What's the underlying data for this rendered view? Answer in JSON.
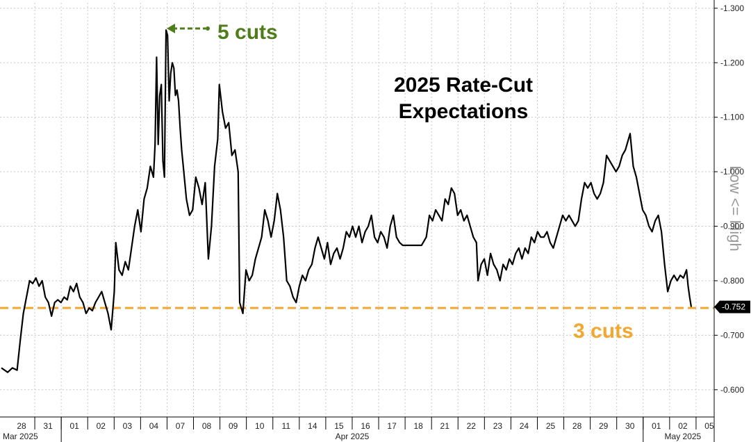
{
  "chart_data": {
    "type": "line",
    "title_lines": [
      "2025 Rate-Cut",
      "Expectations"
    ],
    "y_axis_side_label": "Low <= High",
    "ylim": [
      -0.55,
      -1.31
    ],
    "y_ticks": [
      "-0.600",
      "-0.700",
      "-0.800",
      "-0.900",
      "-1.000",
      "-1.100",
      "-1.200",
      "-1.300"
    ],
    "y_tick_values": [
      -0.6,
      -0.7,
      -0.8,
      -0.9,
      -1.0,
      -1.1,
      -1.2,
      -1.3
    ],
    "x_ticks": [
      "28",
      "31",
      "01",
      "02",
      "03",
      "04",
      "07",
      "08",
      "09",
      "10",
      "11",
      "14",
      "15",
      "16",
      "17",
      "18",
      "21",
      "22",
      "23",
      "24",
      "25",
      "28",
      "29",
      "30",
      "01",
      "02",
      "05"
    ],
    "month_labels": [
      "Mar 2025",
      "Apr 2025",
      "May 2025"
    ],
    "current_value_label": "-0.752",
    "current_value": -0.752,
    "reference_line": {
      "value": -0.75,
      "label": "3 cuts",
      "color": "#f0a830"
    },
    "peak_annotation": {
      "value": -1.27,
      "label": "5 cuts",
      "color": "#4e7d1a"
    },
    "series": [
      {
        "color": "#000000",
        "points": [
          [
            0,
            -0.64
          ],
          [
            0.4,
            -0.632
          ],
          [
            0.7,
            -0.64
          ],
          [
            1.0,
            -0.636
          ],
          [
            1.2,
            -0.69
          ],
          [
            1.4,
            -0.74
          ],
          [
            1.6,
            -0.77
          ],
          [
            1.8,
            -0.8
          ],
          [
            2.0,
            -0.795
          ],
          [
            2.2,
            -0.805
          ],
          [
            2.4,
            -0.79
          ],
          [
            2.6,
            -0.8
          ],
          [
            2.8,
            -0.77
          ],
          [
            3.0,
            -0.76
          ],
          [
            3.2,
            -0.735
          ],
          [
            3.4,
            -0.76
          ],
          [
            3.6,
            -0.765
          ],
          [
            3.8,
            -0.76
          ],
          [
            4.0,
            -0.77
          ],
          [
            4.2,
            -0.765
          ],
          [
            4.4,
            -0.79
          ],
          [
            4.6,
            -0.78
          ],
          [
            4.8,
            -0.795
          ],
          [
            5.0,
            -0.77
          ],
          [
            5.2,
            -0.76
          ],
          [
            5.4,
            -0.74
          ],
          [
            5.6,
            -0.75
          ],
          [
            5.8,
            -0.745
          ],
          [
            6.0,
            -0.76
          ],
          [
            6.2,
            -0.77
          ],
          [
            6.4,
            -0.78
          ],
          [
            6.6,
            -0.76
          ],
          [
            6.8,
            -0.74
          ],
          [
            7.0,
            -0.71
          ],
          [
            7.2,
            -0.78
          ],
          [
            7.3,
            -0.87
          ],
          [
            7.5,
            -0.82
          ],
          [
            7.7,
            -0.81
          ],
          [
            7.9,
            -0.835
          ],
          [
            8.1,
            -0.82
          ],
          [
            8.3,
            -0.86
          ],
          [
            8.5,
            -0.9
          ],
          [
            8.7,
            -0.93
          ],
          [
            8.9,
            -0.89
          ],
          [
            9.1,
            -0.95
          ],
          [
            9.3,
            -0.97
          ],
          [
            9.5,
            -1.01
          ],
          [
            9.7,
            -0.99
          ],
          [
            9.8,
            -1.05
          ],
          [
            9.9,
            -1.21
          ],
          [
            10.0,
            -1.05
          ],
          [
            10.1,
            -1.14
          ],
          [
            10.2,
            -1.16
          ],
          [
            10.3,
            -1.02
          ],
          [
            10.4,
            -0.99
          ],
          [
            10.5,
            -1.26
          ],
          [
            10.6,
            -1.25
          ],
          [
            10.7,
            -1.13
          ],
          [
            10.8,
            -1.18
          ],
          [
            10.9,
            -1.2
          ],
          [
            11.0,
            -1.19
          ],
          [
            11.1,
            -1.14
          ],
          [
            11.2,
            -1.15
          ],
          [
            11.3,
            -1.13
          ],
          [
            11.4,
            -1.08
          ],
          [
            11.5,
            -1.04
          ],
          [
            11.6,
            -1.01
          ],
          [
            11.8,
            -0.95
          ],
          [
            12.0,
            -0.92
          ],
          [
            12.2,
            -0.93
          ],
          [
            12.4,
            -0.99
          ],
          [
            12.6,
            -0.97
          ],
          [
            12.8,
            -0.94
          ],
          [
            13.0,
            -0.98
          ],
          [
            13.2,
            -0.84
          ],
          [
            13.4,
            -0.9
          ],
          [
            13.6,
            -1.01
          ],
          [
            13.8,
            -1.06
          ],
          [
            13.9,
            -1.16
          ],
          [
            14.1,
            -1.11
          ],
          [
            14.3,
            -1.08
          ],
          [
            14.5,
            -1.09
          ],
          [
            14.7,
            -1.03
          ],
          [
            14.9,
            -1.04
          ],
          [
            15.1,
            -1.0
          ],
          [
            15.2,
            -0.76
          ],
          [
            15.4,
            -0.74
          ],
          [
            15.6,
            -0.82
          ],
          [
            15.8,
            -0.8
          ],
          [
            16.0,
            -0.81
          ],
          [
            16.2,
            -0.84
          ],
          [
            16.4,
            -0.86
          ],
          [
            16.6,
            -0.88
          ],
          [
            16.8,
            -0.93
          ],
          [
            17.0,
            -0.91
          ],
          [
            17.2,
            -0.88
          ],
          [
            17.4,
            -0.91
          ],
          [
            17.6,
            -0.96
          ],
          [
            17.8,
            -0.93
          ],
          [
            18.0,
            -0.88
          ],
          [
            18.2,
            -0.8
          ],
          [
            18.4,
            -0.79
          ],
          [
            18.6,
            -0.77
          ],
          [
            18.8,
            -0.76
          ],
          [
            19.0,
            -0.79
          ],
          [
            19.2,
            -0.81
          ],
          [
            19.4,
            -0.8
          ],
          [
            19.6,
            -0.82
          ],
          [
            19.8,
            -0.83
          ],
          [
            20.0,
            -0.86
          ],
          [
            20.2,
            -0.88
          ],
          [
            20.4,
            -0.86
          ],
          [
            20.6,
            -0.84
          ],
          [
            20.8,
            -0.87
          ],
          [
            21.0,
            -0.83
          ],
          [
            21.2,
            -0.85
          ],
          [
            21.4,
            -0.86
          ],
          [
            21.6,
            -0.84
          ],
          [
            21.8,
            -0.86
          ],
          [
            22.0,
            -0.89
          ],
          [
            22.2,
            -0.88
          ],
          [
            22.4,
            -0.9
          ],
          [
            22.6,
            -0.88
          ],
          [
            22.8,
            -0.9
          ],
          [
            23.0,
            -0.87
          ],
          [
            23.2,
            -0.89
          ],
          [
            23.4,
            -0.9
          ],
          [
            23.6,
            -0.92
          ],
          [
            23.8,
            -0.88
          ],
          [
            24.0,
            -0.87
          ],
          [
            24.2,
            -0.89
          ],
          [
            24.4,
            -0.88
          ],
          [
            24.6,
            -0.86
          ],
          [
            24.8,
            -0.9
          ],
          [
            25.0,
            -0.92
          ],
          [
            25.2,
            -0.88
          ],
          [
            25.4,
            -0.87
          ],
          [
            25.6,
            -0.865
          ],
          [
            26.0,
            -0.865
          ],
          [
            26.4,
            -0.865
          ],
          [
            26.8,
            -0.865
          ],
          [
            27.1,
            -0.88
          ],
          [
            27.3,
            -0.92
          ],
          [
            27.5,
            -0.91
          ],
          [
            27.7,
            -0.93
          ],
          [
            27.9,
            -0.92
          ],
          [
            28.1,
            -0.91
          ],
          [
            28.3,
            -0.95
          ],
          [
            28.5,
            -0.94
          ],
          [
            28.7,
            -0.97
          ],
          [
            28.9,
            -0.96
          ],
          [
            29.1,
            -0.92
          ],
          [
            29.3,
            -0.93
          ],
          [
            29.5,
            -0.91
          ],
          [
            29.7,
            -0.92
          ],
          [
            29.9,
            -0.9
          ],
          [
            30.1,
            -0.88
          ],
          [
            30.3,
            -0.87
          ],
          [
            30.4,
            -0.8
          ],
          [
            30.6,
            -0.83
          ],
          [
            30.8,
            -0.84
          ],
          [
            31.0,
            -0.81
          ],
          [
            31.2,
            -0.85
          ],
          [
            31.4,
            -0.83
          ],
          [
            31.6,
            -0.82
          ],
          [
            31.8,
            -0.8
          ],
          [
            32.0,
            -0.83
          ],
          [
            32.2,
            -0.82
          ],
          [
            32.4,
            -0.84
          ],
          [
            32.6,
            -0.83
          ],
          [
            32.8,
            -0.85
          ],
          [
            33.0,
            -0.86
          ],
          [
            33.2,
            -0.84
          ],
          [
            33.4,
            -0.86
          ],
          [
            33.6,
            -0.85
          ],
          [
            33.8,
            -0.88
          ],
          [
            34.0,
            -0.87
          ],
          [
            34.2,
            -0.89
          ],
          [
            34.4,
            -0.88
          ],
          [
            34.6,
            -0.88
          ],
          [
            34.8,
            -0.89
          ],
          [
            35.0,
            -0.87
          ],
          [
            35.2,
            -0.86
          ],
          [
            35.4,
            -0.88
          ],
          [
            35.6,
            -0.9
          ],
          [
            35.8,
            -0.92
          ],
          [
            36.0,
            -0.91
          ],
          [
            36.2,
            -0.92
          ],
          [
            36.4,
            -0.91
          ],
          [
            36.6,
            -0.9
          ],
          [
            36.8,
            -0.91
          ],
          [
            37.0,
            -0.95
          ],
          [
            37.2,
            -0.98
          ],
          [
            37.4,
            -0.97
          ],
          [
            37.6,
            -0.98
          ],
          [
            37.8,
            -0.96
          ],
          [
            38.0,
            -0.95
          ],
          [
            38.2,
            -0.96
          ],
          [
            38.4,
            -0.98
          ],
          [
            38.6,
            -1.03
          ],
          [
            38.8,
            -1.02
          ],
          [
            39.0,
            -1.01
          ],
          [
            39.2,
            -1.0
          ],
          [
            39.4,
            -1.01
          ],
          [
            39.6,
            -1.03
          ],
          [
            39.8,
            -1.04
          ],
          [
            40.0,
            -1.06
          ],
          [
            40.1,
            -1.07
          ],
          [
            40.3,
            -1.01
          ],
          [
            40.5,
            -0.99
          ],
          [
            40.7,
            -0.96
          ],
          [
            40.9,
            -0.93
          ],
          [
            41.1,
            -0.92
          ],
          [
            41.3,
            -0.9
          ],
          [
            41.5,
            -0.89
          ],
          [
            41.7,
            -0.91
          ],
          [
            41.9,
            -0.92
          ],
          [
            42.1,
            -0.89
          ],
          [
            42.3,
            -0.83
          ],
          [
            42.5,
            -0.78
          ],
          [
            42.7,
            -0.8
          ],
          [
            42.9,
            -0.81
          ],
          [
            43.1,
            -0.8
          ],
          [
            43.3,
            -0.81
          ],
          [
            43.5,
            -0.805
          ],
          [
            43.7,
            -0.82
          ],
          [
            43.8,
            -0.79
          ],
          [
            43.9,
            -0.77
          ],
          [
            44.0,
            -0.752
          ]
        ]
      }
    ]
  }
}
